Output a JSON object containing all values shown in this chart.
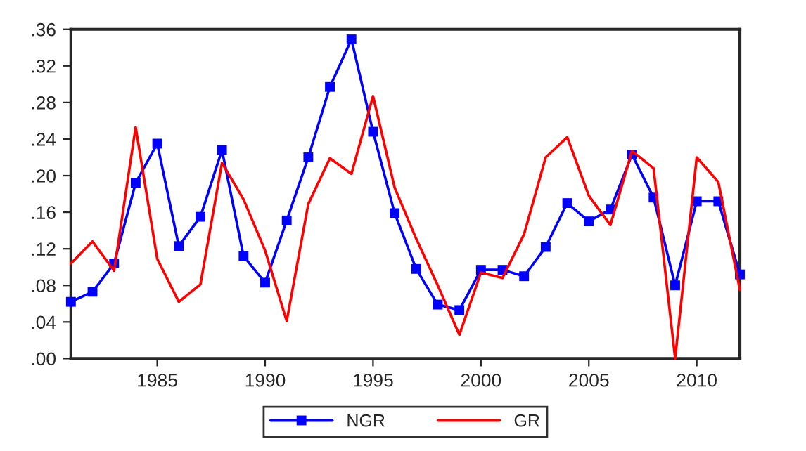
{
  "chart_data": {
    "type": "line",
    "x": [
      1981,
      1982,
      1983,
      1984,
      1985,
      1986,
      1987,
      1988,
      1989,
      1990,
      1991,
      1992,
      1993,
      1994,
      1995,
      1996,
      1997,
      1998,
      1999,
      2000,
      2001,
      2002,
      2003,
      2004,
      2005,
      2006,
      2007,
      2008,
      2009,
      2010,
      2011,
      2012
    ],
    "series": [
      {
        "name": "NGR",
        "color": "#0000ff",
        "marker": "square",
        "values": [
          0.062,
          0.073,
          0.104,
          0.192,
          0.235,
          0.123,
          0.155,
          0.228,
          0.112,
          0.083,
          0.151,
          0.22,
          0.297,
          0.349,
          0.248,
          0.159,
          0.098,
          0.059,
          0.053,
          0.097,
          0.097,
          0.09,
          0.122,
          0.17,
          0.15,
          0.163,
          0.223,
          0.176,
          0.08,
          0.172,
          0.172,
          0.092
        ]
      },
      {
        "name": "GR",
        "color": "#ff0000",
        "marker": "none",
        "values": [
          0.104,
          0.128,
          0.096,
          0.253,
          0.109,
          0.062,
          0.081,
          0.214,
          0.174,
          0.118,
          0.041,
          0.169,
          0.219,
          0.202,
          0.287,
          0.187,
          0.131,
          0.08,
          0.026,
          0.094,
          0.088,
          0.136,
          0.22,
          0.242,
          0.178,
          0.146,
          0.227,
          0.208,
          0.0,
          0.22,
          0.193,
          0.075
        ]
      }
    ],
    "xlim": [
      1981,
      2012
    ],
    "xticks": [
      1985,
      1990,
      1995,
      2000,
      2005,
      2010
    ],
    "ylim": [
      0,
      0.36
    ],
    "yticks": [
      {
        "value": 0,
        "label": ".00"
      },
      {
        "value": 0.04,
        "label": ".04"
      },
      {
        "value": 0.08,
        "label": ".08"
      },
      {
        "value": 0.12,
        "label": ".12"
      },
      {
        "value": 0.16,
        "label": ".16"
      },
      {
        "value": 0.2,
        "label": ".20"
      },
      {
        "value": 0.24,
        "label": ".24"
      },
      {
        "value": 0.28,
        "label": ".28"
      },
      {
        "value": 0.32,
        "label": ".32"
      },
      {
        "value": 0.36,
        "label": ".36"
      }
    ],
    "grid": false,
    "legend": "bottom",
    "line_style": "solid"
  }
}
